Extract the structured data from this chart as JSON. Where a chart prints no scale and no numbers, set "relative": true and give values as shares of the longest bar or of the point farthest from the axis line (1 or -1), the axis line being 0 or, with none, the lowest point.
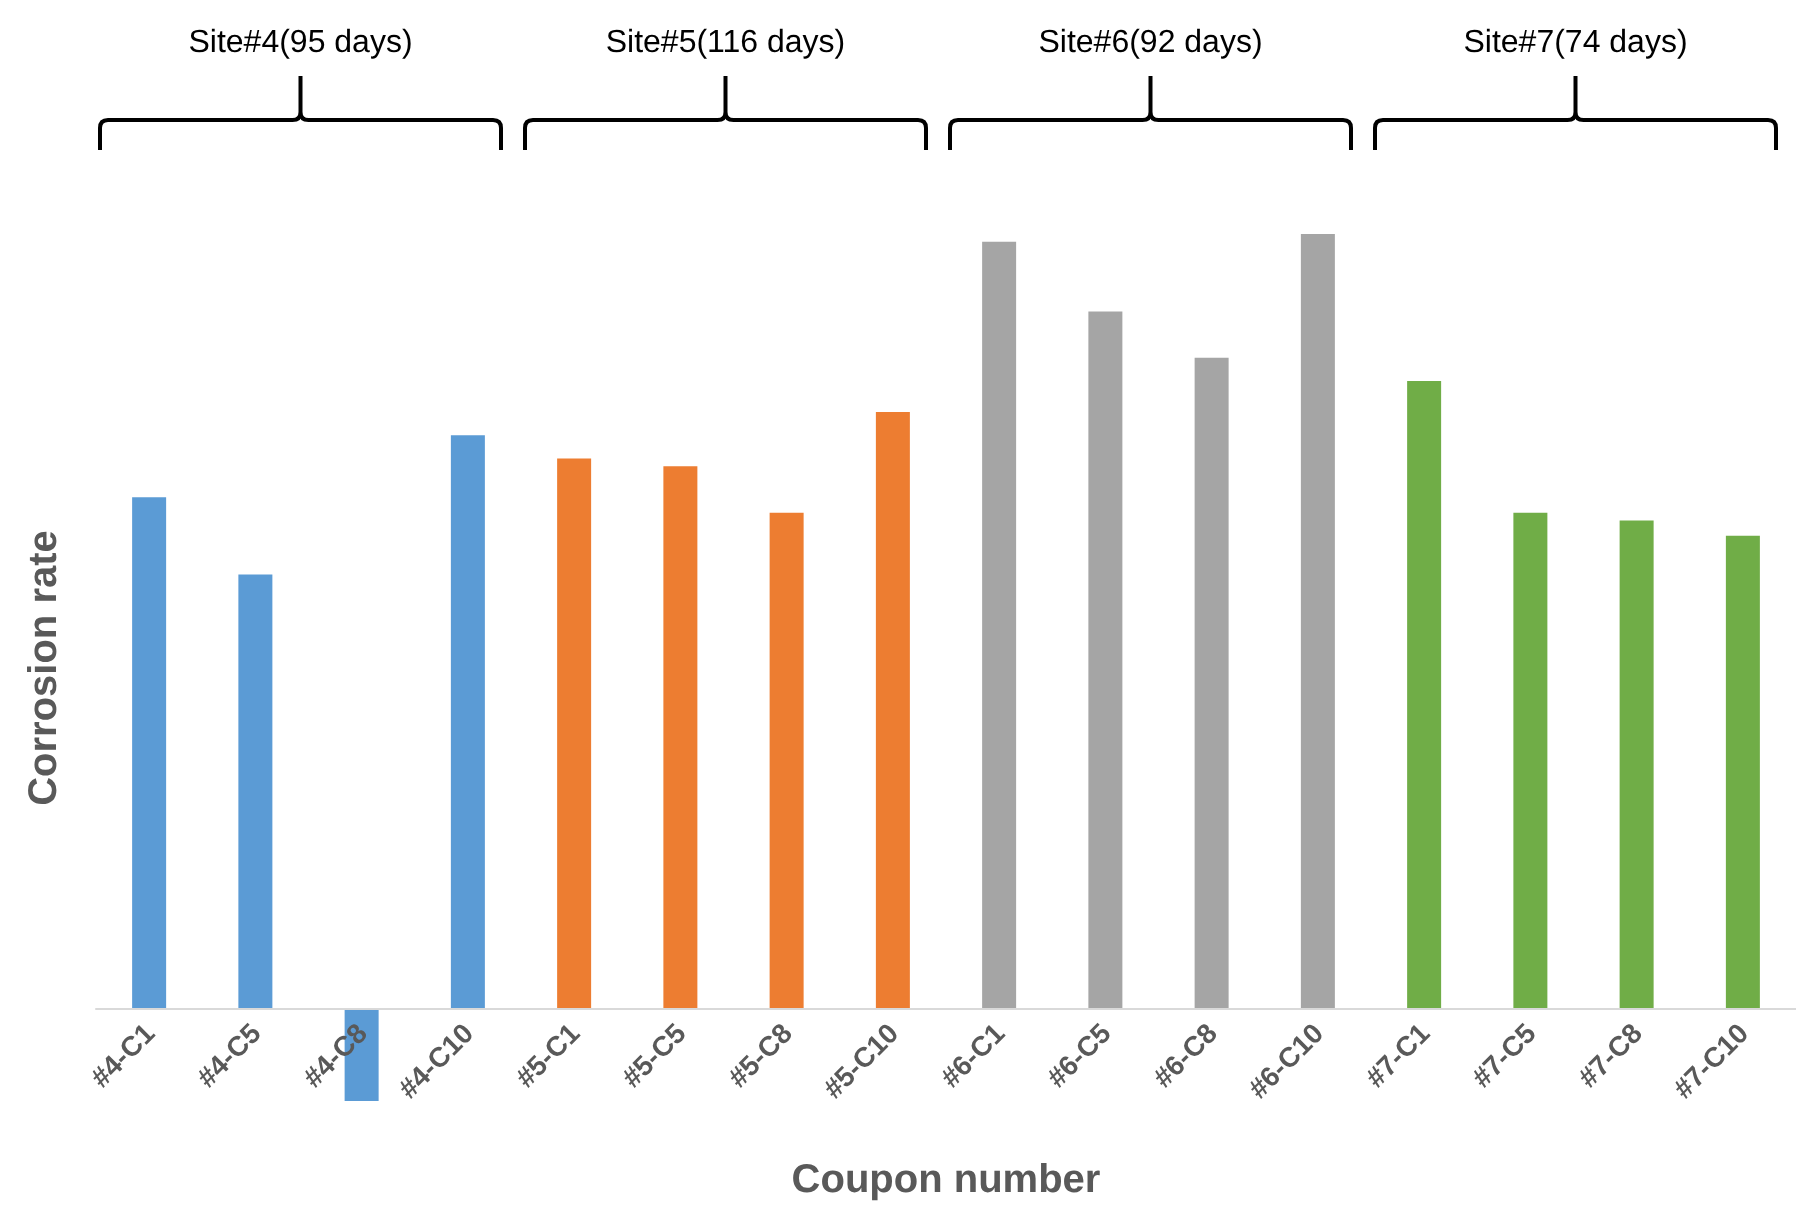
{
  "chart_data": {
    "type": "bar",
    "relative": true,
    "xlabel": "Coupon number",
    "ylabel": "Corrosion rate",
    "categories": [
      "#4-C1",
      "#4-C5",
      "#4-C8",
      "#4-C10",
      "#5-C1",
      "#5-C5",
      "#5-C8",
      "#5-C10",
      "#6-C1",
      "#6-C5",
      "#6-C8",
      "#6-C10",
      "#7-C1",
      "#7-C5",
      "#7-C8",
      "#7-C10"
    ],
    "values": [
      0.66,
      0.56,
      -0.12,
      0.74,
      0.71,
      0.7,
      0.64,
      0.77,
      0.99,
      0.9,
      0.84,
      1,
      0.81,
      0.64,
      0.63,
      0.61
    ],
    "colors": [
      "#5b9bd5",
      "#5b9bd5",
      "#5b9bd5",
      "#5b9bd5",
      "#ed7d31",
      "#ed7d31",
      "#ed7d31",
      "#ed7d31",
      "#a5a5a5",
      "#a5a5a5",
      "#a5a5a5",
      "#a5a5a5",
      "#70ad47",
      "#70ad47",
      "#70ad47",
      "#70ad47"
    ],
    "annotations": [
      "Site#4(95 days)",
      "Site#5(116 days)",
      "Site#6(92 days)",
      "Site#7(74 days)"
    ]
  }
}
